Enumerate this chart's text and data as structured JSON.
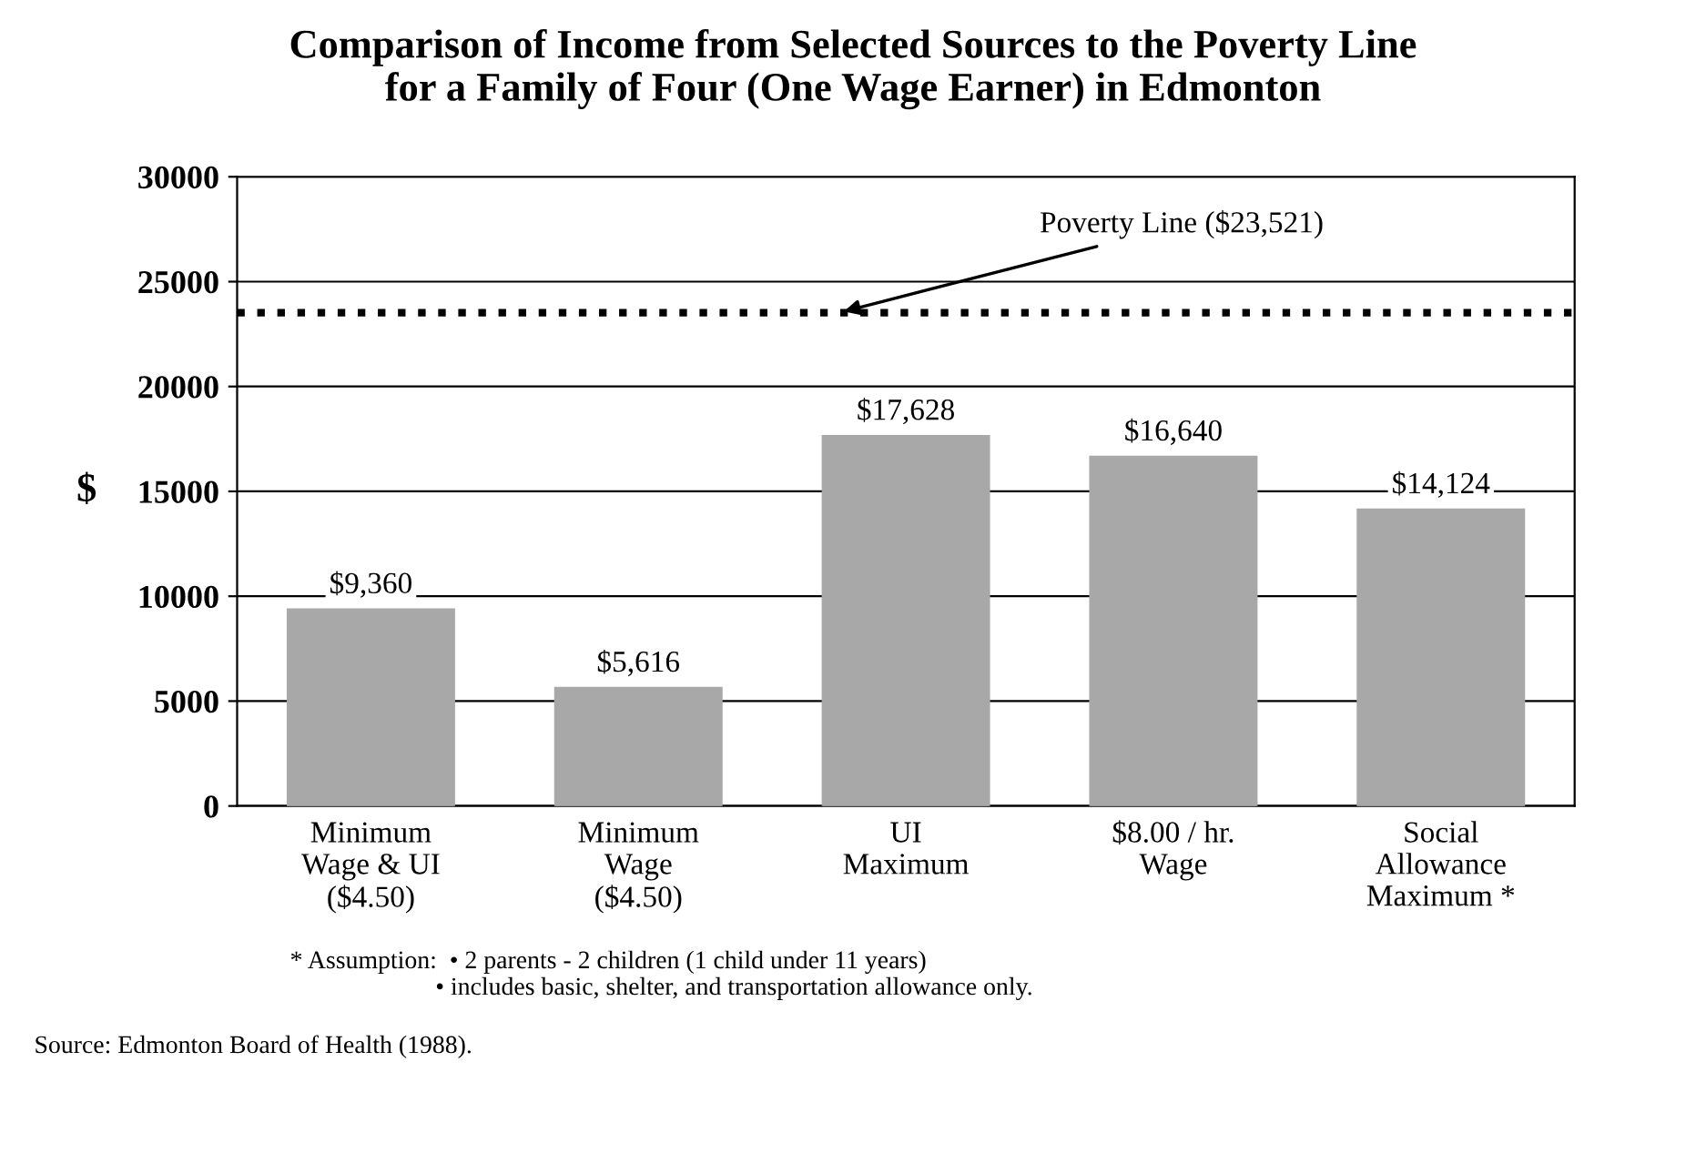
{
  "chart_data": {
    "type": "bar",
    "title": "Comparison of Income from Selected Sources to the Poverty Line\nfor a Family of Four (One Wage Earner) in Edmonton",
    "ylabel": "$",
    "categories": [
      "Minimum\nWage & UI\n($4.50)",
      "Minimum\nWage\n($4.50)",
      "UI\nMaximum",
      "$8.00 / hr.\nWage",
      "Social\nAllowance\nMaximum *"
    ],
    "values": [
      9360,
      5616,
      17628,
      16640,
      14124
    ],
    "value_labels": [
      "$9,360",
      "$5,616",
      "$17,628",
      "$16,640",
      "$14,124"
    ],
    "color": "#a8a8a8",
    "ylim": [
      0,
      30000
    ],
    "yticks": [
      0,
      5000,
      10000,
      15000,
      20000,
      25000,
      30000
    ],
    "grid": "y",
    "ref_lines": [
      {
        "axis": "y",
        "value": 23521,
        "label": "Poverty Line ($23,521)",
        "color": "#000000",
        "line_style": "dotted"
      }
    ],
    "annotations": [
      "* Assumption:  • 2 parents - 2 children (1 child under 11 years)\n                       • includes basic, shelter, and transportation allowance only.",
      "Source: Edmonton Board of Health (1988)."
    ]
  }
}
